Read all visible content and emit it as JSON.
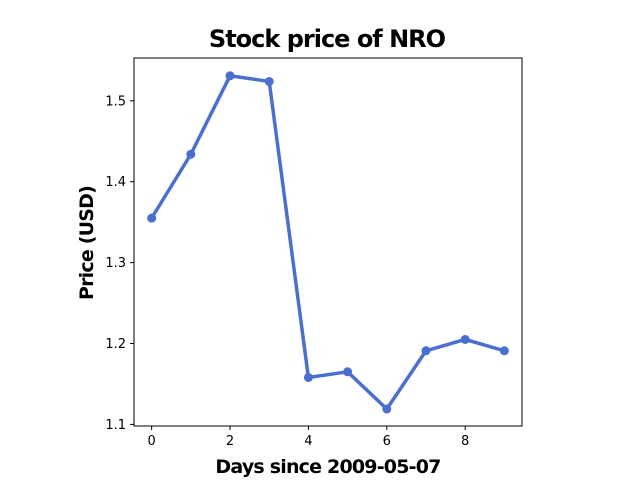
{
  "chart_data": {
    "type": "line",
    "title": "Stock price of NRO",
    "xlabel": "Days since 2009-05-07",
    "ylabel": "Price (USD)",
    "x": [
      0,
      1,
      2,
      3,
      4,
      5,
      6,
      7,
      8,
      9
    ],
    "series": [
      {
        "values": [
          1.355,
          1.434,
          1.531,
          1.524,
          1.158,
          1.165,
          1.119,
          1.191,
          1.205,
          1.191
        ],
        "color": "#4a6fcf"
      }
    ],
    "xlim": [
      -0.45,
      9.45
    ],
    "ylim": [
      1.098,
      1.553
    ],
    "xticks": [
      0,
      2,
      4,
      6,
      8
    ],
    "xtick_labels": [
      "0",
      "2",
      "4",
      "6",
      "8"
    ],
    "yticks": [
      1.1,
      1.2,
      1.3,
      1.4,
      1.5
    ],
    "ytick_labels": [
      "1.1",
      "1.2",
      "1.3",
      "1.4",
      "1.5"
    ],
    "grid": false,
    "markers": true
  }
}
